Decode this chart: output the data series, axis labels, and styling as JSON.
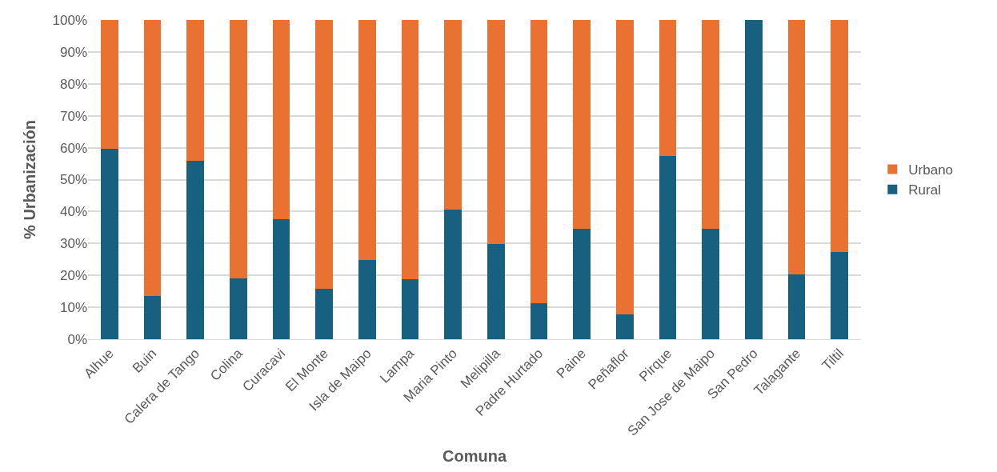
{
  "chart_data": {
    "type": "bar",
    "stacked": true,
    "xlabel": "Comuna",
    "ylabel": "% Urbanización",
    "categories": [
      "Alhue",
      "Buin",
      "Calera de Tango",
      "Colina",
      "Curacavi",
      "El Monte",
      "Isla de Maipo",
      "Lampa",
      "Maria Pinto",
      "Melipilla",
      "Padre Hurtado",
      "Paine",
      "Peñaflor",
      "Pirque",
      "San Jose de Maipo",
      "San Pedro",
      "Talagante",
      "Tiltil"
    ],
    "series": [
      {
        "name": "Rural",
        "color": "#17607f",
        "values": [
          59.6,
          13.5,
          55.8,
          19.0,
          37.7,
          15.9,
          24.8,
          18.7,
          40.5,
          29.9,
          11.2,
          34.7,
          7.8,
          57.3,
          34.7,
          100,
          20.2,
          27.4
        ]
      },
      {
        "name": "Urbano",
        "color": "#e97132",
        "values": [
          40.4,
          86.5,
          44.2,
          81.0,
          62.3,
          84.1,
          75.2,
          81.3,
          59.5,
          70.1,
          88.8,
          65.3,
          92.2,
          42.7,
          65.3,
          0,
          79.8,
          72.6
        ]
      }
    ],
    "ylim": [
      0,
      100
    ],
    "yticks": [
      {
        "value": 0,
        "label": "0%"
      },
      {
        "value": 10,
        "label": "10%"
      },
      {
        "value": 20,
        "label": "20%"
      },
      {
        "value": 30,
        "label": "30%"
      },
      {
        "value": 40,
        "label": "40%"
      },
      {
        "value": 50,
        "label": "50%"
      },
      {
        "value": 60,
        "label": "60%"
      },
      {
        "value": 70,
        "label": "70%"
      },
      {
        "value": 80,
        "label": "80%"
      },
      {
        "value": 90,
        "label": "90%"
      },
      {
        "value": 100,
        "label": "100%"
      }
    ],
    "grid": "y",
    "legend": "right"
  }
}
